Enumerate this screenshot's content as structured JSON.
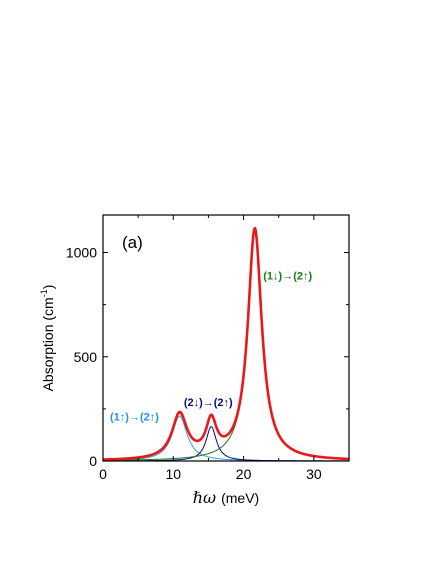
{
  "chart_data": {
    "type": "line",
    "panel_label": "(a)",
    "xlabel_symbol": "ℏω",
    "xlabel_unit": "(meV)",
    "ylabel_main": "Absorption (cm",
    "ylabel_sup": "-1",
    "ylabel_close": ")",
    "xlim": [
      0,
      35
    ],
    "ylim": [
      0,
      1180
    ],
    "xticks": [
      0,
      10,
      20,
      30
    ],
    "yticks": [
      0,
      500,
      1000
    ],
    "grid": false,
    "annotations": [
      {
        "text": "(1↑)→(2↑)",
        "color": "#1e90ff",
        "x": 1.0,
        "y": 195
      },
      {
        "text": "(2↓)→(2↑)",
        "color": "#0a0a7a",
        "x": 11.5,
        "y": 265
      },
      {
        "text": "(1↓)→(2↑)",
        "color": "#1a7a1a",
        "x": 22.8,
        "y": 870
      }
    ],
    "series": [
      {
        "component": "total",
        "color": "#e8191a",
        "peaks": [
          {
            "center": 10.9,
            "amplitude": 215,
            "hwhm": 1.3
          },
          {
            "center": 15.4,
            "amplitude": 165,
            "hwhm": 0.9
          },
          {
            "center": 21.6,
            "amplitude": 1110,
            "hwhm": 1.2
          }
        ]
      },
      {
        "component": "(1↑)→(2↑)",
        "color": "#3aa0e8",
        "peaks": [
          {
            "center": 10.9,
            "amplitude": 215,
            "hwhm": 1.3
          }
        ]
      },
      {
        "component": "(2↓)→(2↑)",
        "color": "#0a0a7a",
        "peaks": [
          {
            "center": 15.4,
            "amplitude": 165,
            "hwhm": 0.9
          }
        ]
      },
      {
        "component": "(1↓)→(2↑)",
        "color": "#1a7a1a",
        "peaks": [
          {
            "center": 21.6,
            "amplitude": 1110,
            "hwhm": 1.2
          }
        ]
      }
    ]
  }
}
